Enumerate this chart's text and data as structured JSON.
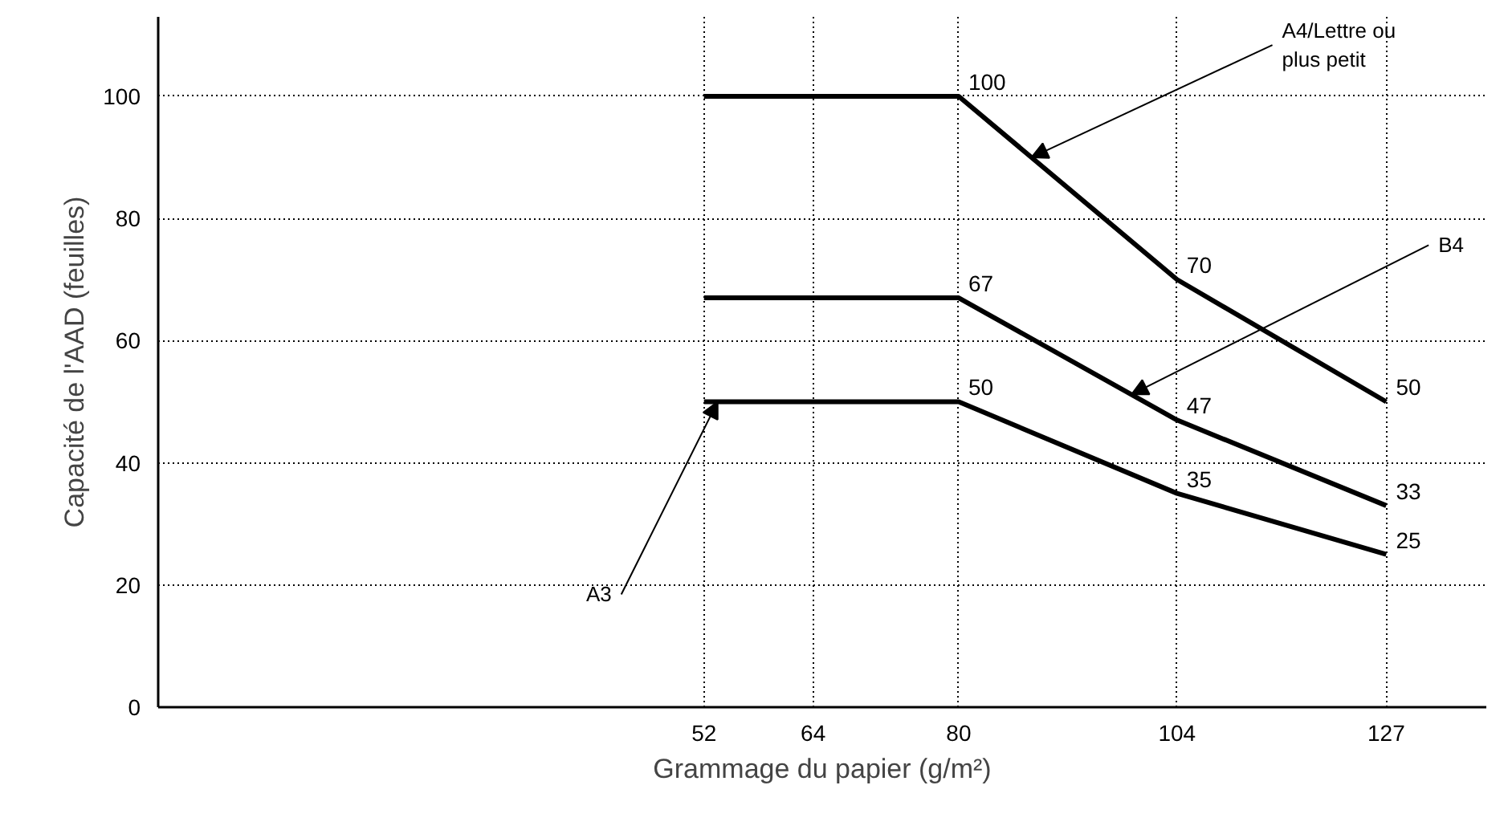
{
  "chart_data": {
    "type": "line",
    "xlabel": "Grammage du papier (g/m²)",
    "ylabel": "Capacité de l'AAD (feuilles)",
    "x": [
      52,
      80,
      104,
      127
    ],
    "series": [
      {
        "color": "#000000",
        "values": [
          100,
          100,
          70,
          50
        ],
        "value_labels": [
          null,
          "100",
          "70",
          "50"
        ]
      },
      {
        "color": "#000000",
        "values": [
          67,
          67,
          47,
          33
        ],
        "value_labels": [
          null,
          "67",
          "47",
          "33"
        ]
      },
      {
        "color": "#000000",
        "values": [
          50,
          50,
          35,
          25
        ],
        "value_labels": [
          null,
          "50",
          "35",
          "25"
        ]
      }
    ],
    "xlim": [
      -8,
      138
    ],
    "ylim": [
      0,
      113
    ],
    "xticks": [
      52,
      64,
      80,
      104,
      127
    ],
    "yticks": [
      0,
      20,
      40,
      60,
      80,
      100
    ],
    "grid": true,
    "marker": "none",
    "line_style": "solid",
    "annotations": [
      {
        "text": "A4/Lettre ou plus petit",
        "x": 88,
        "y": 90
      },
      {
        "text": "B4",
        "x": 99,
        "y": 51.2
      },
      {
        "text": "A3",
        "x": 53.5,
        "y": 50
      }
    ]
  }
}
